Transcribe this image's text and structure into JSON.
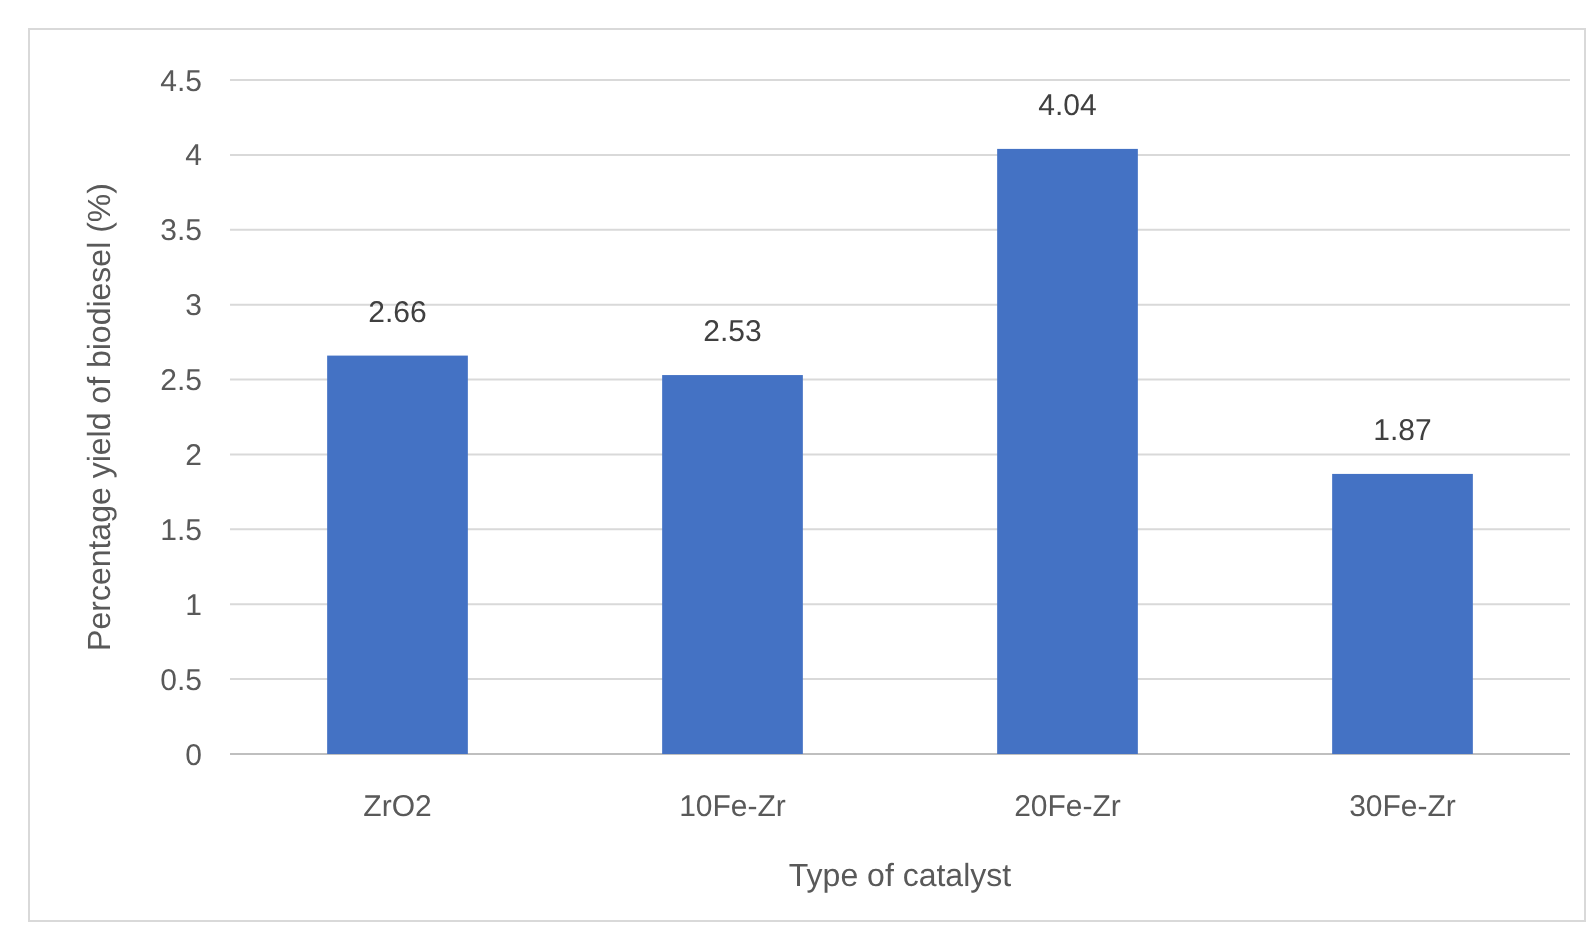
{
  "chart_data": {
    "type": "bar",
    "xlabel": "Type of catalyst",
    "ylabel": "Percentage yield of biodiesel (%)",
    "categories": [
      "ZrO2",
      "10Fe-Zr",
      "20Fe-Zr",
      "30Fe-Zr"
    ],
    "values": [
      2.66,
      2.53,
      4.04,
      1.87
    ],
    "color": "#4472c4",
    "ylim": [
      0,
      4.5
    ],
    "yticks": [
      0,
      {
        "value": 0.5,
        "label": "0.5"
      },
      1,
      {
        "value": 1.5,
        "label": "1.5"
      },
      2,
      {
        "value": 2.5,
        "label": "2.5"
      },
      3,
      {
        "value": 3.5,
        "label": "3.5"
      },
      4,
      {
        "value": 4.5,
        "label": "4.5"
      }
    ],
    "grid": "y",
    "data_labels": true
  }
}
